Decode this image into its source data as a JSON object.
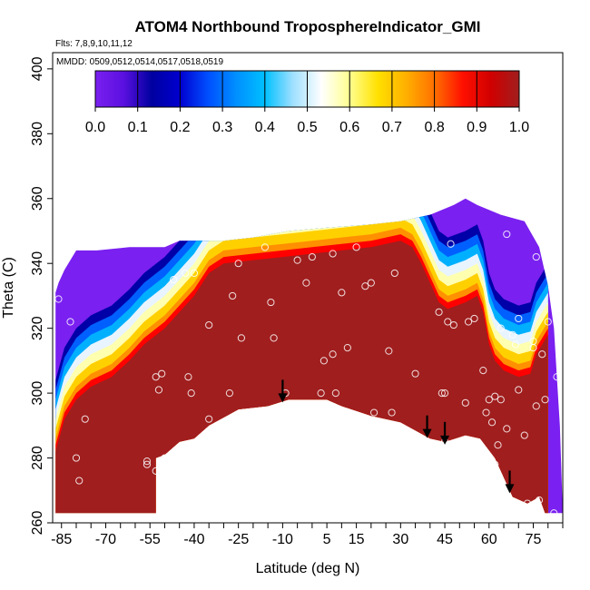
{
  "chart_data": {
    "type": "heatmap",
    "title": "ATOM4 Northbound TroposphereIndicator_GMI",
    "subtitle": "Flts: 7,8,9,10,11,12",
    "annotation": "MMDD: 0509,0512,0514,0517,0518,0519",
    "xlabel": "Latitude (deg N)",
    "ylabel": "Theta (C)",
    "xlim": [
      -88,
      85
    ],
    "ylim": [
      260,
      405
    ],
    "x_ticks": [
      "-85",
      "-70",
      "-55",
      "-40",
      "-25",
      "-10",
      "5",
      "15",
      "30",
      "45",
      "60",
      "75"
    ],
    "x_tick_values": [
      -85,
      -70,
      -55,
      -40,
      -25,
      -10,
      5,
      15,
      30,
      45,
      60,
      75
    ],
    "y_ticks": [
      "260",
      "280",
      "300",
      "320",
      "340",
      "360",
      "380",
      "400"
    ],
    "y_tick_values": [
      260,
      280,
      300,
      320,
      340,
      360,
      380,
      400
    ],
    "colorbar": {
      "range": [
        0,
        1
      ],
      "ticks": [
        "0.0",
        "0.1",
        "0.2",
        "0.3",
        "0.4",
        "0.5",
        "0.6",
        "0.7",
        "0.8",
        "0.9",
        "1.0"
      ],
      "placement": "top-inside",
      "colors": [
        "#7a20f0",
        "#0000a8",
        "#0060ff",
        "#00b0ff",
        "#e8f4ff",
        "#ffffb0",
        "#ffd000",
        "#ff9000",
        "#ff0000",
        "#a01e1e"
      ]
    },
    "fill_color": "#a01e1e",
    "field_outer": [
      [
        -87,
        263
      ],
      [
        -87,
        331
      ],
      [
        -86,
        334
      ],
      [
        -84,
        338
      ],
      [
        -80,
        344
      ],
      [
        -73,
        344
      ],
      [
        -62,
        345
      ],
      [
        -50,
        345
      ],
      [
        -45,
        347
      ],
      [
        -30,
        347
      ],
      [
        -20,
        348
      ],
      [
        -8,
        350
      ],
      [
        5,
        351
      ],
      [
        20,
        352
      ],
      [
        30,
        353
      ],
      [
        40,
        355
      ],
      [
        48,
        358
      ],
      [
        52,
        360
      ],
      [
        56,
        358
      ],
      [
        64,
        355
      ],
      [
        72,
        353
      ],
      [
        77,
        345
      ],
      [
        80,
        333
      ],
      [
        82,
        320
      ],
      [
        83,
        305
      ],
      [
        84,
        290
      ],
      [
        85,
        263
      ],
      [
        79,
        263
      ],
      [
        77,
        268
      ],
      [
        73,
        266
      ],
      [
        68,
        268
      ],
      [
        66,
        272
      ],
      [
        62,
        280
      ],
      [
        57,
        286
      ],
      [
        52,
        287
      ],
      [
        45,
        285
      ],
      [
        40,
        286
      ],
      [
        30,
        291
      ],
      [
        20,
        293
      ],
      [
        10,
        296
      ],
      [
        5,
        298
      ],
      [
        -2,
        298
      ],
      [
        -8,
        298
      ],
      [
        -15,
        296
      ],
      [
        -25,
        295
      ],
      [
        -35,
        290
      ],
      [
        -40,
        286
      ],
      [
        -45,
        285
      ],
      [
        -50,
        281
      ],
      [
        -53,
        280
      ],
      [
        -53,
        263
      ]
    ],
    "red_boundary": [
      [
        -87,
        282
      ],
      [
        -84,
        292
      ],
      [
        -80,
        298
      ],
      [
        -75,
        302
      ],
      [
        -68,
        305
      ],
      [
        -62,
        310
      ],
      [
        -57,
        315
      ],
      [
        -50,
        320
      ],
      [
        -45,
        325
      ],
      [
        -40,
        330
      ],
      [
        -35,
        337
      ],
      [
        -30,
        340
      ],
      [
        -20,
        341
      ],
      [
        -10,
        342
      ],
      [
        0,
        343
      ],
      [
        10,
        344
      ],
      [
        20,
        345
      ],
      [
        30,
        347
      ],
      [
        34,
        345
      ],
      [
        37,
        340
      ],
      [
        40,
        334
      ],
      [
        43,
        328
      ],
      [
        46,
        326
      ],
      [
        52,
        328
      ],
      [
        56,
        330
      ],
      [
        58,
        325
      ],
      [
        59,
        320
      ],
      [
        60,
        315
      ],
      [
        62,
        310
      ],
      [
        65,
        307
      ],
      [
        70,
        305
      ],
      [
        74,
        306
      ],
      [
        76,
        312
      ],
      [
        80,
        318
      ],
      [
        80,
        310
      ],
      [
        80,
        263
      ]
    ],
    "arrow_markers": [
      {
        "x": -10,
        "y": 303
      },
      {
        "x": 39,
        "y": 292
      },
      {
        "x": 45,
        "y": 290
      },
      {
        "x": 67,
        "y": 275
      }
    ],
    "observations": [
      [
        -86,
        329
      ],
      [
        -82,
        322
      ],
      [
        -80,
        280
      ],
      [
        -79,
        273
      ],
      [
        -77,
        292
      ],
      [
        -56,
        278
      ],
      [
        -56,
        279
      ],
      [
        -53,
        276
      ],
      [
        -50,
        280
      ],
      [
        -53,
        305
      ],
      [
        -51,
        306
      ],
      [
        -52,
        301
      ],
      [
        -47,
        335
      ],
      [
        -43,
        337
      ],
      [
        -40,
        337
      ],
      [
        -42,
        305
      ],
      [
        -41,
        300
      ],
      [
        -35,
        292
      ],
      [
        -35,
        321
      ],
      [
        -28,
        300
      ],
      [
        -27,
        330
      ],
      [
        -25,
        340
      ],
      [
        -24,
        317
      ],
      [
        -16,
        345
      ],
      [
        -14,
        328
      ],
      [
        -13,
        317
      ],
      [
        -9,
        300
      ],
      [
        -5,
        341
      ],
      [
        -2,
        334
      ],
      [
        0,
        342
      ],
      [
        3,
        300
      ],
      [
        4,
        310
      ],
      [
        7,
        343
      ],
      [
        7,
        312
      ],
      [
        8,
        300
      ],
      [
        10,
        331
      ],
      [
        12,
        314
      ],
      [
        15,
        345
      ],
      [
        18,
        333
      ],
      [
        20,
        334
      ],
      [
        21,
        294
      ],
      [
        26,
        313
      ],
      [
        27,
        294
      ],
      [
        28,
        337
      ],
      [
        35,
        306
      ],
      [
        43,
        325
      ],
      [
        44,
        300
      ],
      [
        45,
        285
      ],
      [
        45,
        300
      ],
      [
        46,
        322
      ],
      [
        47,
        346
      ],
      [
        48,
        321
      ],
      [
        51,
        285
      ],
      [
        52,
        297
      ],
      [
        53,
        322
      ],
      [
        55,
        323
      ],
      [
        58,
        307
      ],
      [
        59,
        294
      ],
      [
        60,
        298
      ],
      [
        61,
        291
      ],
      [
        62,
        278
      ],
      [
        62,
        299
      ],
      [
        63,
        284
      ],
      [
        64,
        320
      ],
      [
        64,
        298
      ],
      [
        66,
        349
      ],
      [
        66,
        289
      ],
      [
        68,
        318
      ],
      [
        69,
        315
      ],
      [
        70,
        301
      ],
      [
        70,
        323
      ],
      [
        72,
        287
      ],
      [
        73,
        266
      ],
      [
        75,
        314
      ],
      [
        75,
        316
      ],
      [
        76,
        342
      ],
      [
        76,
        296
      ],
      [
        77,
        267
      ],
      [
        78,
        312
      ],
      [
        79,
        345
      ],
      [
        79,
        298
      ],
      [
        80,
        322
      ],
      [
        82,
        263
      ],
      [
        83,
        305
      ]
    ]
  }
}
